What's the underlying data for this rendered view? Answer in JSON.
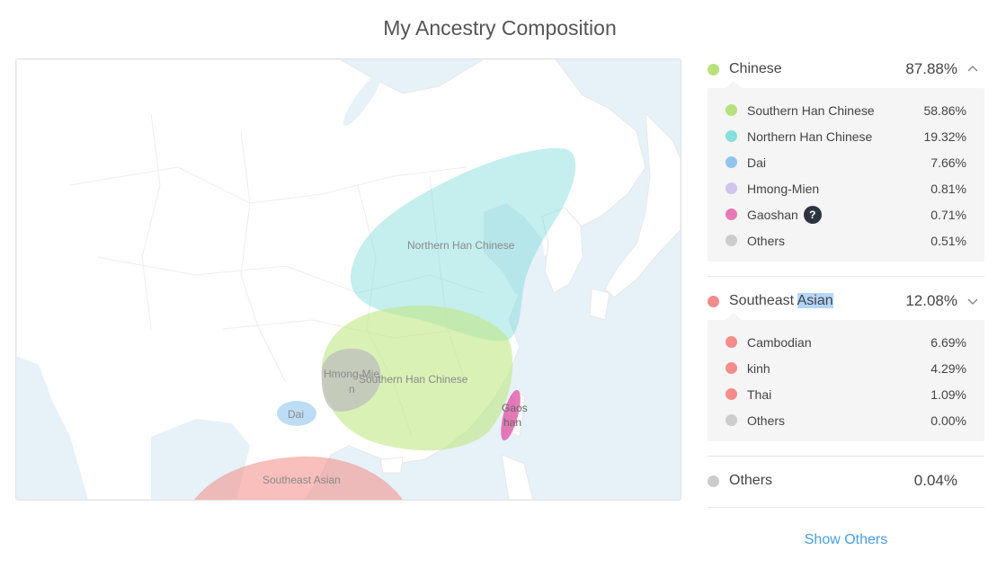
{
  "page": {
    "title": "My Ancestry Composition"
  },
  "map": {
    "labels": {
      "northern_han": "Northern Han Chinese",
      "southern_han": "Southern Han Chinese",
      "hmong_mien_a": "Hmong-Mie",
      "hmong_mien_b": "n",
      "dai": "Dai",
      "gaoshan_a": "Gaos",
      "gaoshan_b": "han",
      "southeast_asian": "Southeast Asian"
    },
    "colors": {
      "sea": "#e6f1f8",
      "land": "#ffffff",
      "northern_han": "#7fdada",
      "southern_han": "#bfe884",
      "hmong_mien": "#bdbdbd",
      "dai": "#8fc7ef",
      "gaoshan": "#e15aa6",
      "southeast_asian": "#f39590"
    }
  },
  "groups": [
    {
      "name": "Chinese",
      "pct": "87.88%",
      "color": "#b7e17b",
      "expanded": true,
      "items": [
        {
          "name": "Southern Han Chinese",
          "pct": "58.86%",
          "color": "#b7e17b"
        },
        {
          "name": "Northern Han Chinese",
          "pct": "19.32%",
          "color": "#86dede"
        },
        {
          "name": "Dai",
          "pct": "7.66%",
          "color": "#8fc4ee"
        },
        {
          "name": "Hmong-Mien",
          "pct": "0.81%",
          "color": "#cfc4ec"
        },
        {
          "name": "Gaoshan",
          "pct": "0.71%",
          "color": "#e879b4",
          "help": "?"
        },
        {
          "name": "Others",
          "pct": "0.51%",
          "color": "#cccccc"
        }
      ]
    },
    {
      "name_a": "Southeast ",
      "name_b": "Asian",
      "pct": "12.08%",
      "color": "#f48c89",
      "expanded": true,
      "items": [
        {
          "name": "Cambodian",
          "pct": "6.69%",
          "color": "#f48c89"
        },
        {
          "name": "kinh",
          "pct": "4.29%",
          "color": "#f48c89"
        },
        {
          "name": "Thai",
          "pct": "1.09%",
          "color": "#f48c89"
        },
        {
          "name": "Others",
          "pct": "0.00%",
          "color": "#cccccc"
        }
      ]
    },
    {
      "name": "Others",
      "pct": "0.04%",
      "color": "#cccccc",
      "expanded": false
    }
  ],
  "show_others": "Show Others",
  "icons": {
    "chevron_up": "chevron-up-icon",
    "chevron_down": "chevron-down-icon",
    "help": "help-icon"
  }
}
